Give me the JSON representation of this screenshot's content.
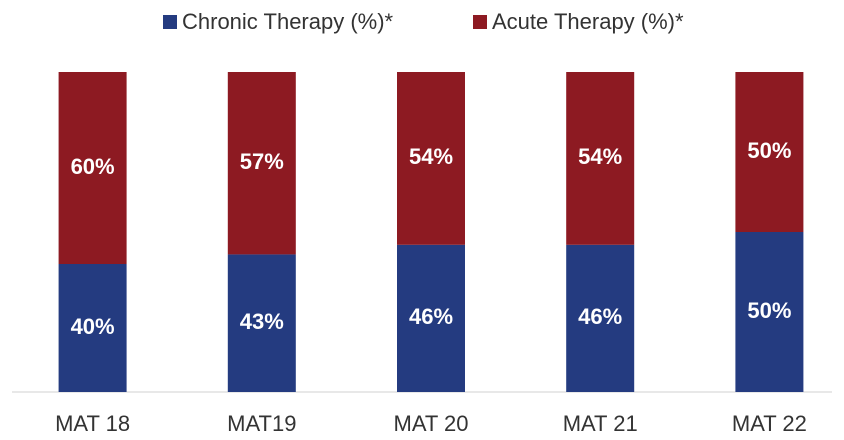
{
  "chart_data": {
    "type": "stacked_bar",
    "categories": [
      "MAT 18",
      "MAT19",
      "MAT 20",
      "MAT 21",
      "MAT 22"
    ],
    "series": [
      {
        "name": "Chronic Therapy (%)*",
        "color": "#243b80",
        "values": [
          40,
          43,
          46,
          46,
          50
        ],
        "value_labels": [
          "40%",
          "43%",
          "46%",
          "46%",
          "50%"
        ]
      },
      {
        "name": "Acute Therapy (%)*",
        "color": "#8d1a22",
        "values": [
          60,
          57,
          54,
          54,
          50
        ],
        "value_labels": [
          "60%",
          "57%",
          "54%",
          "54%",
          "50%"
        ]
      }
    ],
    "ylim": [
      0,
      100
    ],
    "legend": "top"
  }
}
